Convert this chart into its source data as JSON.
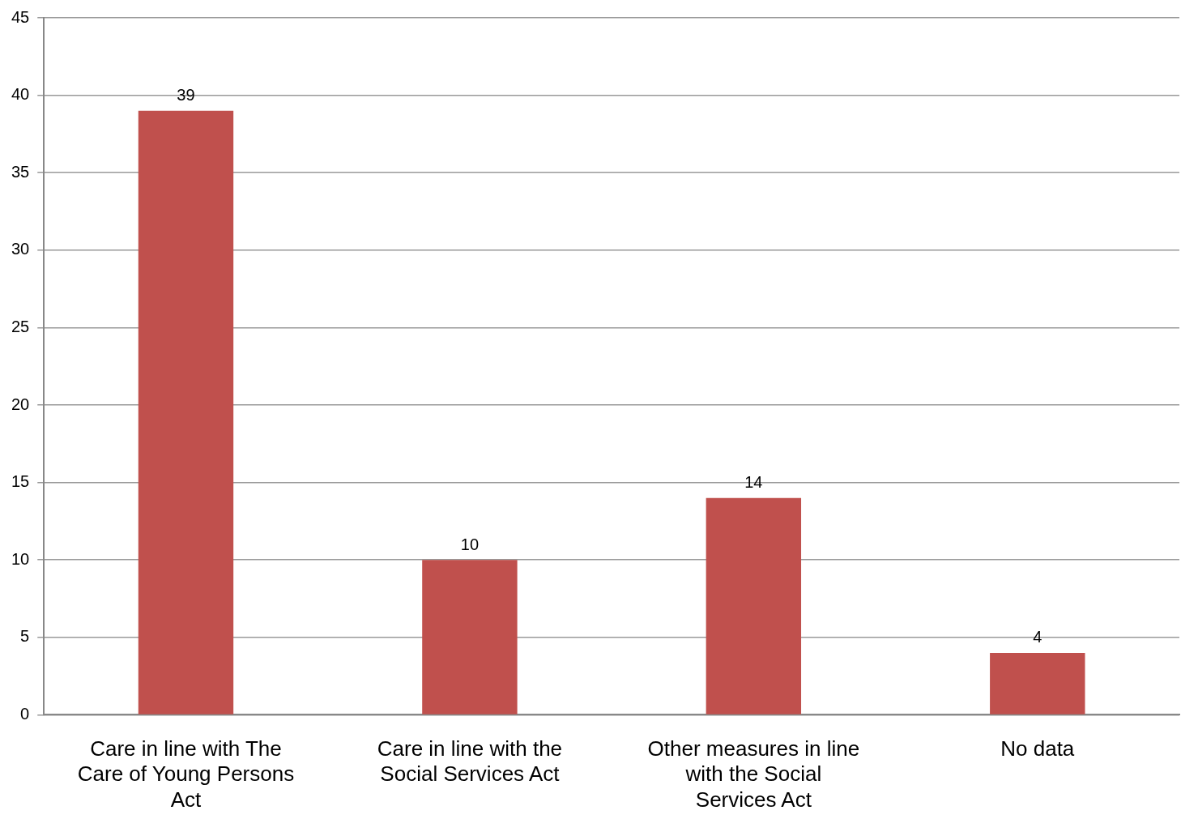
{
  "chart_data": {
    "type": "bar",
    "categories": [
      "Care in line with The Care of Young Persons Act",
      "Care in line with the Social Services Act",
      "Other measures in line with the Social Services Act",
      "No data"
    ],
    "values": [
      39,
      10,
      14,
      4
    ],
    "color": "#c0504d",
    "ylim": [
      0,
      45
    ],
    "yticks": [
      0,
      5,
      10,
      15,
      20,
      25,
      30,
      35,
      40,
      45
    ],
    "grid": "y",
    "data_labels": true,
    "legend": false
  }
}
